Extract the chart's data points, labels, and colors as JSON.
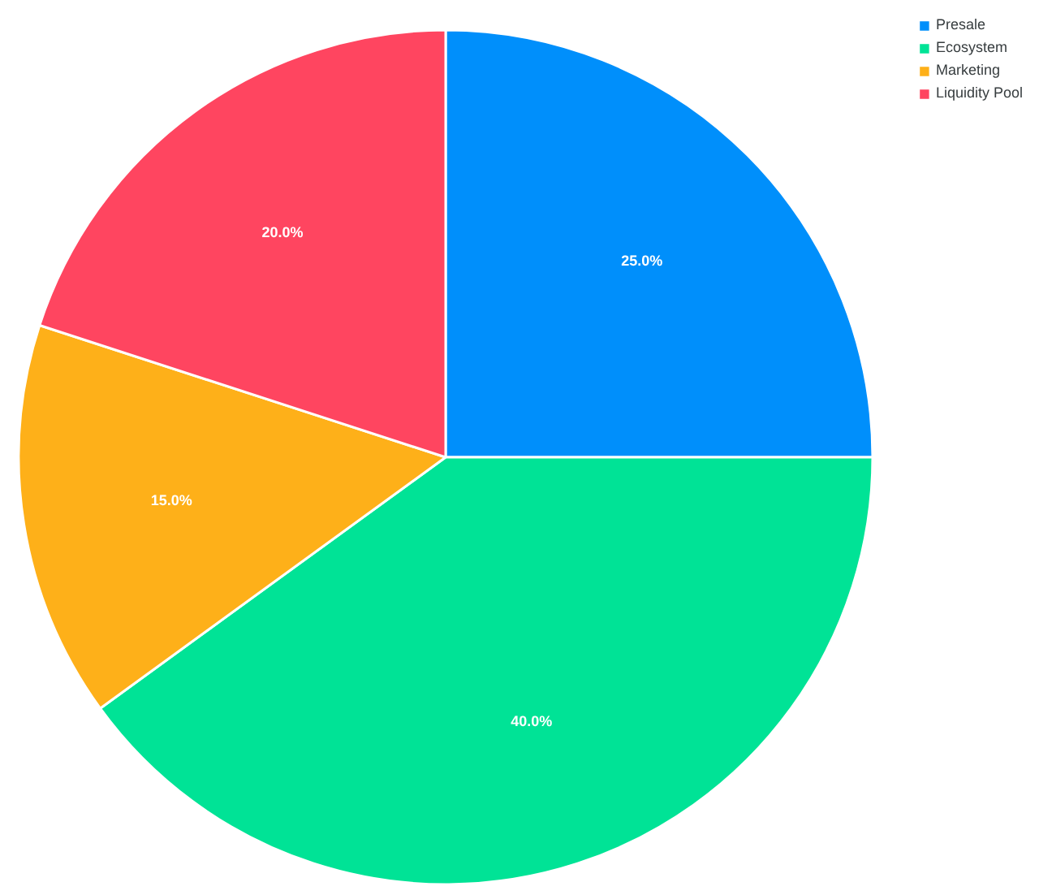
{
  "chart_data": {
    "type": "pie",
    "categories": [
      "Presale",
      "Ecosystem",
      "Marketing",
      "Liquidity Pool"
    ],
    "values": [
      25,
      40,
      15,
      20
    ],
    "colors": [
      "#008ffb",
      "#00e396",
      "#feb019",
      "#ff4560"
    ],
    "value_labels": [
      "25.0%",
      "40.0%",
      "15.0%",
      "20.0%"
    ],
    "legend": "top right"
  }
}
